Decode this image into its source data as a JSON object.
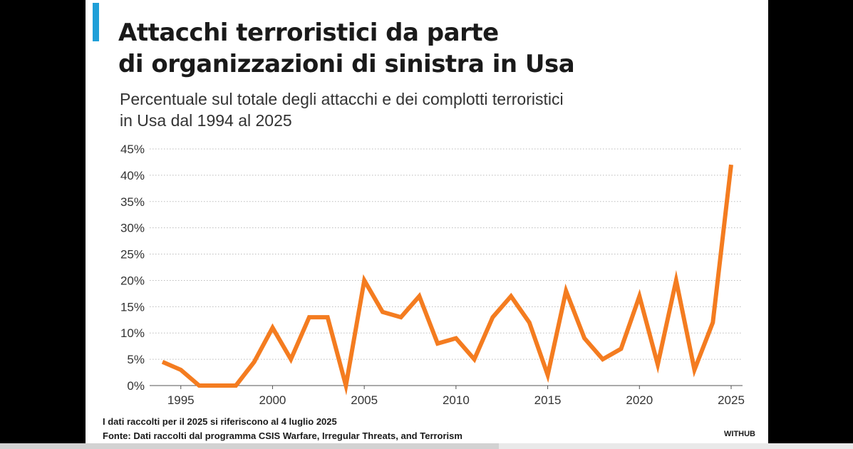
{
  "header": {
    "title_line1": "Attacchi terroristici da parte",
    "title_line2": "di organizzazioni di sinistra in Usa",
    "subtitle_line1": "Percentuale sul totale degli attacchi e dei complotti terroristici",
    "subtitle_line2": "in Usa dal 1994 al 2025"
  },
  "footer": {
    "note": "I dati raccolti per il 2025 si riferiscono al 4 luglio 2025",
    "source": "Fonte: Dati raccolti dal programma CSIS Warfare, Irregular Threats, and Terrorism",
    "brand": "WITHUB"
  },
  "colors": {
    "line": "#f47c20",
    "accent": "#1f9fd8",
    "grid": "#bbbbbb",
    "text": "#1a1a1a"
  },
  "chart_data": {
    "type": "line",
    "x": [
      1994,
      1995,
      1996,
      1997,
      1998,
      1999,
      2000,
      2001,
      2002,
      2003,
      2004,
      2005,
      2006,
      2007,
      2008,
      2009,
      2010,
      2011,
      2012,
      2013,
      2014,
      2015,
      2016,
      2017,
      2018,
      2019,
      2020,
      2021,
      2022,
      2023,
      2024,
      2025
    ],
    "series": [
      {
        "values": [
          4.5,
          3,
          0,
          0,
          0,
          4.5,
          11,
          5,
          13,
          13,
          0,
          20,
          14,
          13,
          17,
          8,
          9,
          5,
          13,
          17,
          12,
          2,
          18,
          9,
          5,
          7,
          17,
          4,
          20,
          3,
          12,
          42
        ]
      }
    ],
    "x_ticks": [
      1995,
      2000,
      2005,
      2010,
      2015,
      2020,
      2025
    ],
    "y_ticks": [
      0,
      5,
      10,
      15,
      20,
      25,
      30,
      35,
      40,
      45
    ],
    "y_tick_labels": [
      "0%",
      "5%",
      "10%",
      "15%",
      "20%",
      "25%",
      "30%",
      "35%",
      "40%",
      "45%"
    ],
    "ylim": [
      0,
      45
    ],
    "xlim": [
      1994,
      2025
    ],
    "xlabel": "",
    "ylabel": "",
    "grid": true,
    "legend": "none"
  }
}
